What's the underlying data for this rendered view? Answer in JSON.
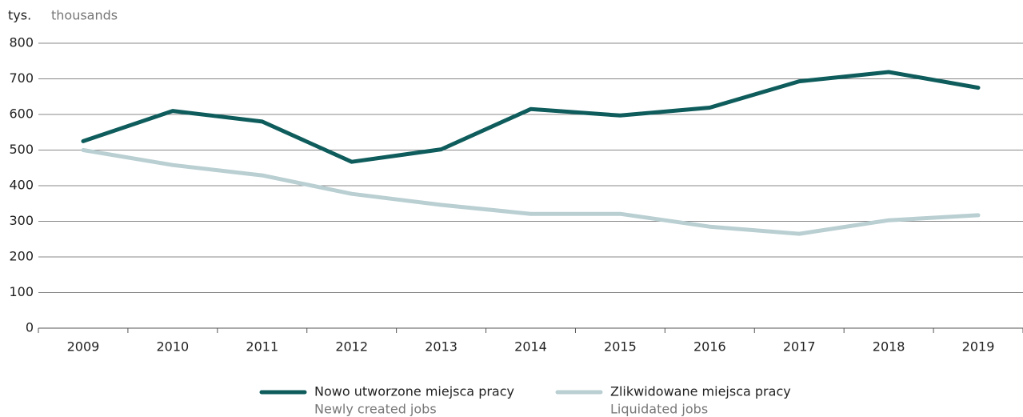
{
  "chart_data": {
    "type": "line",
    "y_unit": "tys.",
    "y_unit_en": "thousands",
    "categories": [
      "2009",
      "2010",
      "2011",
      "2012",
      "2013",
      "2014",
      "2015",
      "2016",
      "2017",
      "2018",
      "2019"
    ],
    "series": [
      {
        "name": "Nowo utworzone miejsca pracy",
        "name_en": "Newly created jobs",
        "color": "#0f5c5c",
        "values": [
          525,
          610,
          580,
          467,
          502,
          615,
          597,
          619,
          693,
          719,
          675
        ]
      },
      {
        "name": "Zlikwidowane miejsca pracy",
        "name_en": "Liquidated jobs",
        "color": "#b9cfd2",
        "values": [
          500,
          458,
          429,
          377,
          346,
          321,
          321,
          285,
          265,
          303,
          317
        ]
      }
    ],
    "ylim": [
      0,
      800
    ],
    "yticks": [
      0,
      100,
      200,
      300,
      400,
      500,
      600,
      700,
      800
    ],
    "grid": true
  }
}
